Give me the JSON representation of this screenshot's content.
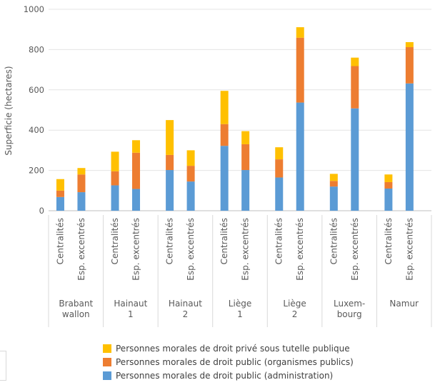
{
  "chart_data": {
    "type": "bar",
    "stacked": true,
    "title": "",
    "ylabel": "Superficie (hectares)",
    "xlabel": "",
    "ylim": [
      0,
      1000
    ],
    "yticks": [
      0,
      200,
      400,
      600,
      800,
      1000
    ],
    "grid": true,
    "legend_position": "bottom",
    "groups": [
      {
        "label_lines": [
          "Brabant",
          "wallon"
        ],
        "bars": [
          "Centralités",
          "Esp. excentrés"
        ]
      },
      {
        "label_lines": [
          "Hainaut",
          "1"
        ],
        "bars": [
          "Centralités",
          "Esp. excentrés"
        ]
      },
      {
        "label_lines": [
          "Hainaut",
          "2"
        ],
        "bars": [
          "Centralités",
          "Esp. excentrés"
        ]
      },
      {
        "label_lines": [
          "Liège",
          "1"
        ],
        "bars": [
          "Centralités",
          "Esp. excentrés"
        ]
      },
      {
        "label_lines": [
          "Liège",
          "2"
        ],
        "bars": [
          "Centralités",
          "Esp. excentrés"
        ]
      },
      {
        "label_lines": [
          "Luxem-",
          "bourg"
        ],
        "bars": [
          "Centralités",
          "Esp. excentrés"
        ]
      },
      {
        "label_lines": [
          "Namur",
          ""
        ],
        "bars": [
          "Centralités",
          "Esp. excentrés"
        ]
      }
    ],
    "series": [
      {
        "name": "Personnes morales de droit public (administration)",
        "color": "#5b9bd5",
        "values": [
          [
            68,
            92
          ],
          [
            126,
            108
          ],
          [
            202,
            145
          ],
          [
            322,
            202
          ],
          [
            165,
            537
          ],
          [
            120,
            508
          ],
          [
            110,
            632
          ]
        ]
      },
      {
        "name": "Personnes morales de droit public (organismes publics)",
        "color": "#ed7d31",
        "values": [
          [
            32,
            88
          ],
          [
            70,
            180
          ],
          [
            75,
            78
          ],
          [
            108,
            128
          ],
          [
            90,
            322
          ],
          [
            28,
            210
          ],
          [
            32,
            180
          ]
        ]
      },
      {
        "name": "Personnes morales de droit privé sous tutelle publique",
        "color": "#ffc000",
        "values": [
          [
            57,
            32
          ],
          [
            97,
            62
          ],
          [
            173,
            77
          ],
          [
            165,
            65
          ],
          [
            60,
            52
          ],
          [
            35,
            42
          ],
          [
            38,
            25
          ]
        ]
      }
    ]
  },
  "legend_order": [
    2,
    1,
    0
  ]
}
